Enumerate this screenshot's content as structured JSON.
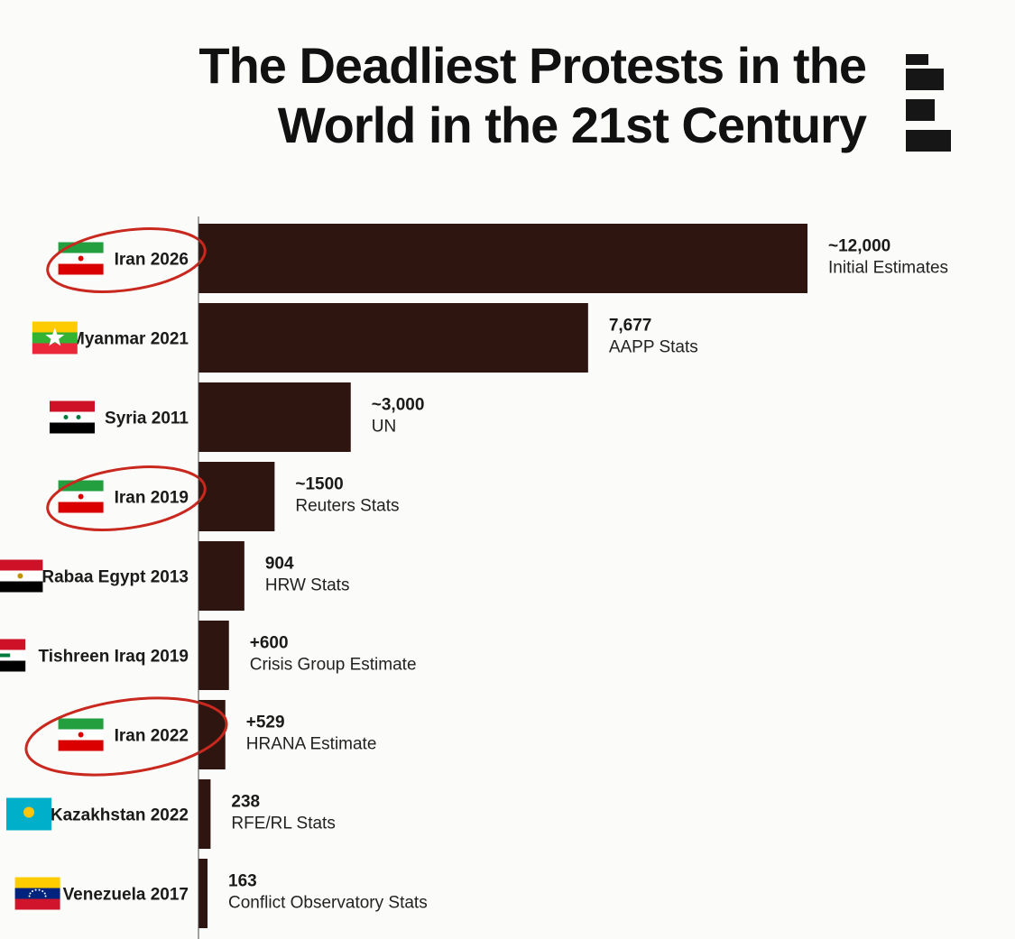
{
  "title_line1": "The Deadliest Protests in the",
  "title_line2": "World in the 21st Century",
  "colors": {
    "bar": "#2e1510",
    "annotation": "#c8281e"
  },
  "chart_data": {
    "type": "bar",
    "orientation": "horizontal",
    "title": "The Deadliest Protests in the World in the 21st Century",
    "xlim": [
      0,
      12000
    ],
    "categories": [
      "Iran 2026",
      "Myanmar 2021",
      "Syria 2011",
      "Iran 2019",
      "Rabaa Egypt 2013",
      "Tishreen Iraq 2019",
      "Iran 2022",
      "Kazakhstan 2022",
      "Venezuela 2017"
    ],
    "values": [
      12000,
      7677,
      3000,
      1500,
      904,
      600,
      529,
      238,
      163
    ],
    "value_labels": [
      "~12,000",
      "7,677",
      "~3,000",
      "~1500",
      "904",
      "+600",
      "+529",
      "238",
      "163"
    ],
    "sources": [
      "Initial Estimates",
      "AAPP Stats",
      "UN",
      "Reuters Stats",
      "HRW Stats",
      "Crisis Group Estimate",
      "HRANA Estimate",
      "RFE/RL Stats",
      "Conflict Observatory Stats"
    ],
    "flags": [
      "iran",
      "myanmar",
      "syria",
      "iran",
      "egypt",
      "iraq",
      "iran",
      "kazakhstan",
      "venezuela"
    ],
    "circled": [
      true,
      false,
      false,
      true,
      false,
      false,
      true,
      false,
      false
    ]
  }
}
